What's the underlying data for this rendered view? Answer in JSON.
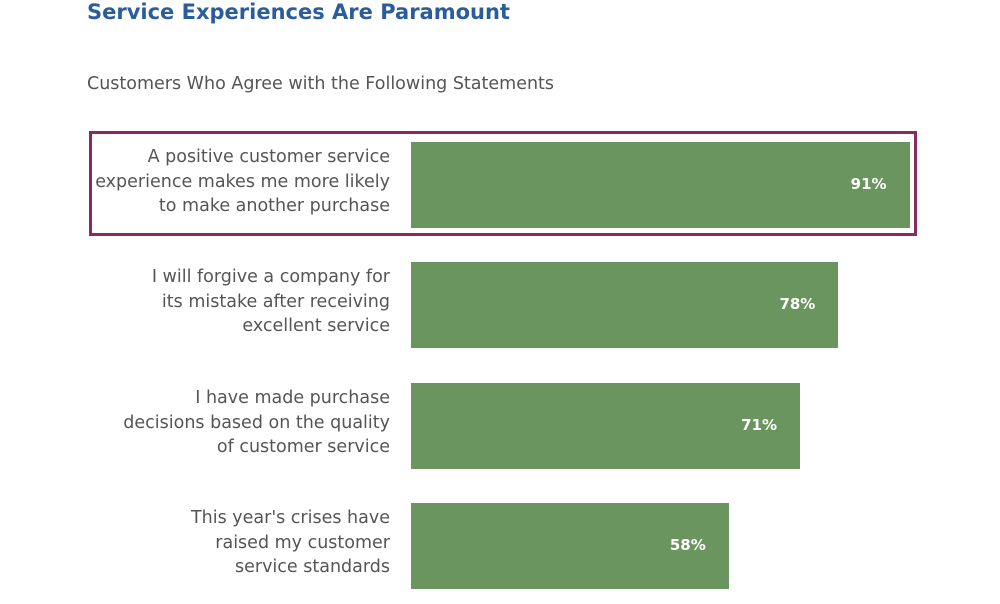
{
  "chart_data": {
    "type": "bar",
    "orientation": "horizontal",
    "title": "Service Experiences Are Paramount",
    "subtitle": "Customers Who Agree with the Following Statements",
    "categories": [
      "A positive customer service experience makes me more likely to make another purchase",
      "I will forgive a company for its mistake after receiving excellent service",
      "I have made purchase decisions based on the quality of customer service",
      "This year's crises have raised my customer service standards"
    ],
    "category_lines": [
      [
        "A positive customer service",
        "experience makes me more likely",
        "to make another purchase"
      ],
      [
        "I will forgive a company for",
        "its mistake after receiving",
        "excellent service"
      ],
      [
        "I have made purchase",
        "decisions based on the quality",
        "of customer service"
      ],
      [
        "This year's crises have",
        "raised my customer",
        "service standards"
      ]
    ],
    "values": [
      91,
      78,
      71,
      58
    ],
    "value_labels": [
      "91%",
      "78%",
      "71%",
      "58%"
    ],
    "unit": "%",
    "xlim": [
      0,
      100
    ],
    "grid": false,
    "highlighted_index": 0,
    "colors": {
      "bar": "#6a955e",
      "title": "#2a5d9a",
      "highlight": "#8b2a5e"
    }
  }
}
